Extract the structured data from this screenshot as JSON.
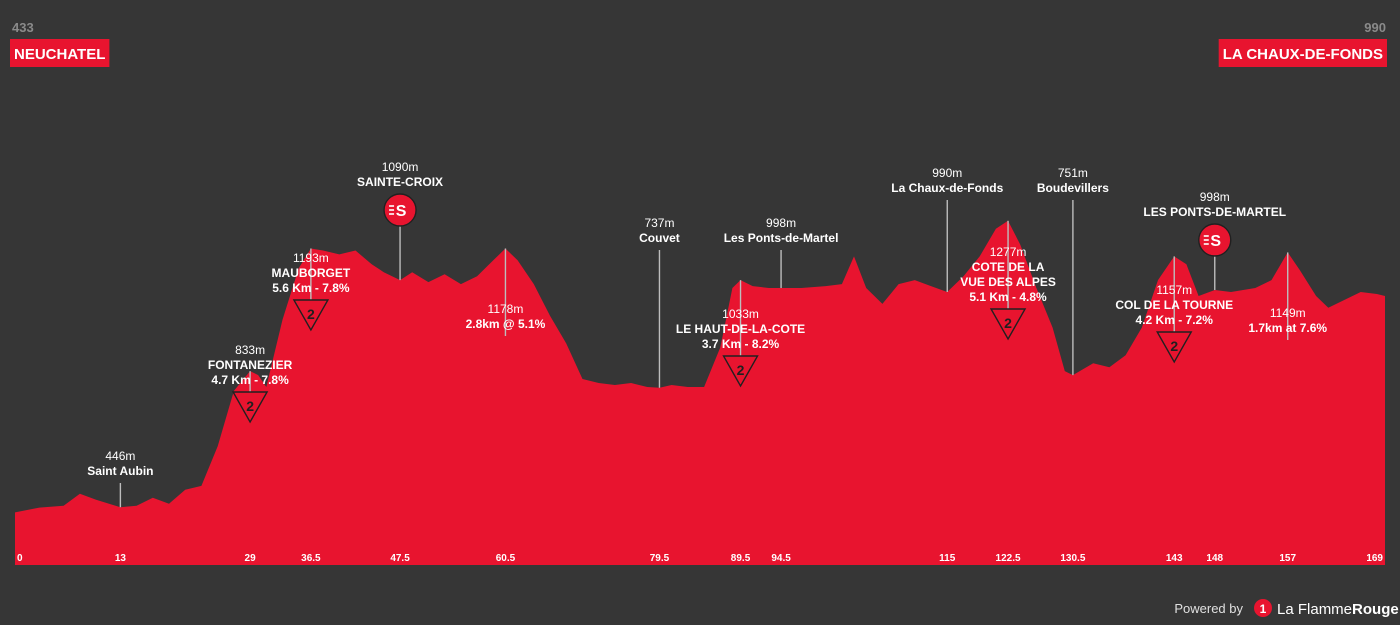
{
  "colors": {
    "background": "#363636",
    "profile": "#e8142f",
    "endpoint_bg": "#e8142f",
    "text": "#ffffff",
    "muted": "#8a8a8a",
    "pin": "#bdbdbd"
  },
  "start": {
    "altitude": "433",
    "name": "NEUCHATEL"
  },
  "finish": {
    "altitude": "990",
    "name": "LA CHAUX-DE-FONDS"
  },
  "chart_data": {
    "type": "area",
    "xlim": [
      0,
      169
    ],
    "ylim": [
      300,
      1450
    ],
    "km_ticks": [
      "0",
      "13",
      "29",
      "36.5",
      "47.5",
      "60.5",
      "79.5",
      "89.5",
      "94.5",
      "115",
      "122.5",
      "130.5",
      "143",
      "148",
      "157",
      "169"
    ],
    "profile": [
      [
        0,
        433
      ],
      [
        3,
        445
      ],
      [
        6,
        450
      ],
      [
        8,
        480
      ],
      [
        10,
        465
      ],
      [
        13,
        446
      ],
      [
        15,
        450
      ],
      [
        17,
        470
      ],
      [
        19,
        455
      ],
      [
        21,
        490
      ],
      [
        23,
        500
      ],
      [
        25,
        600
      ],
      [
        27,
        740
      ],
      [
        29,
        790
      ],
      [
        30,
        780
      ],
      [
        31,
        750
      ],
      [
        33,
        920
      ],
      [
        35,
        1050
      ],
      [
        36.5,
        1100
      ],
      [
        38,
        1095
      ],
      [
        40,
        1085
      ],
      [
        42,
        1095
      ],
      [
        44,
        1060
      ],
      [
        45.5,
        1040
      ],
      [
        47.5,
        1020
      ],
      [
        49,
        1040
      ],
      [
        51,
        1015
      ],
      [
        53,
        1035
      ],
      [
        55,
        1010
      ],
      [
        57,
        1030
      ],
      [
        59,
        1070
      ],
      [
        60.5,
        1100
      ],
      [
        62,
        1070
      ],
      [
        64,
        1010
      ],
      [
        66,
        930
      ],
      [
        68,
        860
      ],
      [
        70,
        770
      ],
      [
        72,
        760
      ],
      [
        74,
        755
      ],
      [
        76,
        760
      ],
      [
        78,
        750
      ],
      [
        79.5,
        748
      ],
      [
        81,
        755
      ],
      [
        83,
        750
      ],
      [
        85,
        750
      ],
      [
        87,
        850
      ],
      [
        88.5,
        1000
      ],
      [
        89.5,
        1020
      ],
      [
        91,
        1005
      ],
      [
        93,
        1000
      ],
      [
        94.5,
        1000
      ],
      [
        97,
        1000
      ],
      [
        100,
        1005
      ],
      [
        102,
        1010
      ],
      [
        103.5,
        1080
      ],
      [
        105,
        1000
      ],
      [
        107,
        960
      ],
      [
        109,
        1010
      ],
      [
        111,
        1020
      ],
      [
        113,
        1005
      ],
      [
        115,
        990
      ],
      [
        117,
        1030
      ],
      [
        119,
        1080
      ],
      [
        121,
        1150
      ],
      [
        122.5,
        1170
      ],
      [
        124,
        1110
      ],
      [
        126,
        1000
      ],
      [
        128,
        900
      ],
      [
        129.5,
        790
      ],
      [
        130.5,
        780
      ],
      [
        133,
        810
      ],
      [
        135,
        800
      ],
      [
        137,
        830
      ],
      [
        139,
        900
      ],
      [
        141,
        1020
      ],
      [
        143,
        1080
      ],
      [
        144.5,
        1060
      ],
      [
        146,
        980
      ],
      [
        148,
        995
      ],
      [
        150,
        990
      ],
      [
        153,
        1000
      ],
      [
        155,
        1020
      ],
      [
        157,
        1090
      ],
      [
        158.5,
        1045
      ],
      [
        160.5,
        980
      ],
      [
        162,
        950
      ],
      [
        164,
        970
      ],
      [
        166,
        990
      ],
      [
        168,
        985
      ],
      [
        169,
        980
      ]
    ],
    "pins": [
      {
        "km": 13,
        "top_y": 483,
        "lines": [
          {
            "t": "446m",
            "c": "alt"
          },
          {
            "t": "Saint Aubin",
            "c": "name"
          }
        ]
      },
      {
        "km": 29,
        "top_y": 392,
        "marker": "kom",
        "cat": "2",
        "lines": [
          {
            "t": "833m",
            "c": "alt"
          },
          {
            "t": "FONTANEZIER",
            "c": "name"
          },
          {
            "t": "4.7 Km - 7.8%",
            "c": "name"
          }
        ]
      },
      {
        "km": 36.5,
        "top_y": 300,
        "marker": "kom",
        "cat": "2",
        "lines": [
          {
            "t": "1193m",
            "c": "alt"
          },
          {
            "t": "MAUBORGET",
            "c": "name"
          },
          {
            "t": "5.6 Km - 7.8%",
            "c": "name"
          }
        ]
      },
      {
        "km": 47.5,
        "top_y": 210,
        "marker": "sprint",
        "cat": "S",
        "lines": [
          {
            "t": "1090m",
            "c": "alt"
          },
          {
            "t": "SAINTE-CROIX",
            "c": "name"
          }
        ]
      },
      {
        "km": 60.5,
        "top_y": 336,
        "lines": [
          {
            "t": "1178m",
            "c": "alt"
          },
          {
            "t": "2.8km @ 5.1%",
            "c": "name"
          }
        ]
      },
      {
        "km": 79.5,
        "top_y": 250,
        "lines": [
          {
            "t": "737m",
            "c": "alt"
          },
          {
            "t": "Couvet",
            "c": "name"
          }
        ]
      },
      {
        "km": 89.5,
        "top_y": 356,
        "marker": "kom",
        "cat": "2",
        "lines": [
          {
            "t": "1033m",
            "c": "alt"
          },
          {
            "t": "LE HAUT-DE-LA-COTE",
            "c": "name"
          },
          {
            "t": "3.7 Km - 8.2%",
            "c": "name"
          }
        ]
      },
      {
        "km": 94.5,
        "top_y": 250,
        "lines": [
          {
            "t": "998m",
            "c": "alt"
          },
          {
            "t": "Les Ponts-de-Martel",
            "c": "name"
          }
        ]
      },
      {
        "km": 115,
        "top_y": 200,
        "lines": [
          {
            "t": "990m",
            "c": "alt"
          },
          {
            "t": "La Chaux-de-Fonds",
            "c": "name"
          }
        ]
      },
      {
        "km": 122.5,
        "top_y": 309,
        "marker": "kom",
        "cat": "2",
        "lines": [
          {
            "t": "1277m",
            "c": "alt"
          },
          {
            "t": "COTE DE LA",
            "c": "name"
          },
          {
            "t": "VUE DES ALPES",
            "c": "name"
          },
          {
            "t": "5.1 Km - 4.8%",
            "c": "name"
          }
        ]
      },
      {
        "km": 130.5,
        "top_y": 200,
        "lines": [
          {
            "t": "751m",
            "c": "alt"
          },
          {
            "t": "Boudevillers",
            "c": "name"
          }
        ]
      },
      {
        "km": 143,
        "top_y": 332,
        "marker": "kom",
        "cat": "2",
        "lines": [
          {
            "t": "1157m",
            "c": "alt"
          },
          {
            "t": "COL DE LA TOURNE",
            "c": "name"
          },
          {
            "t": "4.2 Km - 7.2%",
            "c": "name"
          }
        ]
      },
      {
        "km": 148,
        "top_y": 240,
        "marker": "sprint",
        "cat": "S",
        "lines": [
          {
            "t": "998m",
            "c": "alt"
          },
          {
            "t": "LES PONTS-DE-MARTEL",
            "c": "name"
          }
        ]
      },
      {
        "km": 157,
        "top_y": 340,
        "lines": [
          {
            "t": "1149m",
            "c": "alt"
          },
          {
            "t": "1.7km at 7.6%",
            "c": "name"
          }
        ]
      }
    ]
  },
  "footer": {
    "powered_by": "Powered by",
    "brand_first": "La Flamme",
    "brand_second": "Rouge",
    "logo_glyph": "1"
  }
}
